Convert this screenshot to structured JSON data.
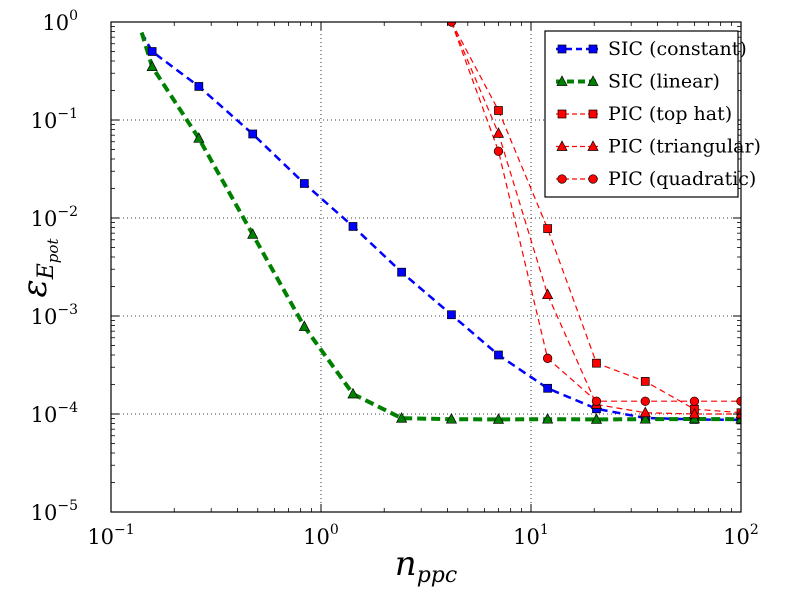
{
  "chart_data": {
    "type": "line",
    "xscale": "log",
    "yscale": "log",
    "xlim": [
      0.1,
      100
    ],
    "ylim": [
      1e-05,
      1
    ],
    "grid": true,
    "grid_style": "dotted",
    "legend_position": "top-right",
    "x_ticks": [
      {
        "base": "10",
        "exp": "−1",
        "value": 0.1
      },
      {
        "base": "10",
        "exp": "0",
        "value": 1
      },
      {
        "base": "10",
        "exp": "1",
        "value": 10
      },
      {
        "base": "10",
        "exp": "2",
        "value": 100
      }
    ],
    "y_ticks": [
      {
        "base": "10",
        "exp": "−5",
        "value": 1e-05
      },
      {
        "base": "10",
        "exp": "−4",
        "value": 0.0001
      },
      {
        "base": "10",
        "exp": "−3",
        "value": 0.001
      },
      {
        "base": "10",
        "exp": "−2",
        "value": 0.01
      },
      {
        "base": "10",
        "exp": "−1",
        "value": 0.1
      },
      {
        "base": "10",
        "exp": "0",
        "value": 1
      }
    ],
    "xlabel": {
      "main": "n",
      "sub": "ppc"
    },
    "ylabel": {
      "main": "ε",
      "sub": "E",
      "subsub": "pot"
    },
    "series": [
      {
        "name": "SIC (constant)",
        "color": "#0000ff",
        "marker": "square",
        "linestyle": "dashed",
        "linewidth": 2.5,
        "x": [
          0.14,
          0.157,
          0.262,
          0.473,
          0.833,
          1.42,
          2.42,
          4.18,
          7.0,
          12.0,
          20.5,
          35.0,
          60.0,
          100.0
        ],
        "y": [
          0.78,
          0.5,
          0.22,
          0.072,
          0.0225,
          0.0082,
          0.0028,
          0.00103,
          0.0004,
          0.000183,
          0.000113,
          9.1e-05,
          8.8e-05,
          8.7e-05
        ],
        "markers_from": 1
      },
      {
        "name": "SIC (linear)",
        "color": "#008000",
        "marker": "triangle",
        "linestyle": "dashed",
        "linewidth": 4,
        "x": [
          0.14,
          0.157,
          0.262,
          0.473,
          0.833,
          1.42,
          2.42,
          4.18,
          7.0,
          12.0,
          20.5,
          35.0,
          60.0,
          100.0
        ],
        "y": [
          0.78,
          0.35,
          0.065,
          0.0068,
          0.00078,
          0.00016,
          9.05e-05,
          8.85e-05,
          8.8e-05,
          8.85e-05,
          8.8e-05,
          8.85e-05,
          8.9e-05,
          8.85e-05
        ],
        "markers_from": 1
      },
      {
        "name": "PIC (top hat)",
        "color": "#ff0000",
        "marker": "square",
        "linestyle": "dashed",
        "linewidth": 1.2,
        "x": [
          4.18,
          7.0,
          12.0,
          20.5,
          35.0,
          60.0,
          100.0
        ],
        "y": [
          1.0,
          0.125,
          0.0078,
          0.00033,
          0.000215,
          0.000112,
          0.000103
        ],
        "markers_from": 1
      },
      {
        "name": "PIC (triangular)",
        "color": "#ff0000",
        "marker": "triangle",
        "linestyle": "dashed",
        "linewidth": 1.2,
        "x": [
          4.18,
          7.0,
          12.0,
          20.5,
          35.0,
          60.0,
          100.0
        ],
        "y": [
          1.0,
          0.073,
          0.00165,
          0.000125,
          0.000103,
          0.0001,
          0.0001
        ],
        "markers_from": 1
      },
      {
        "name": "PIC (quadratic)",
        "color": "#ff0000",
        "marker": "circle",
        "linestyle": "dashed",
        "linewidth": 1.2,
        "x": [
          4.18,
          7.0,
          12.0,
          20.5,
          35.0,
          60.0,
          100.0
        ],
        "y": [
          1.0,
          0.048,
          0.00037,
          0.000135,
          0.000135,
          0.000135,
          0.000135
        ],
        "markers_from": 0
      }
    ]
  }
}
